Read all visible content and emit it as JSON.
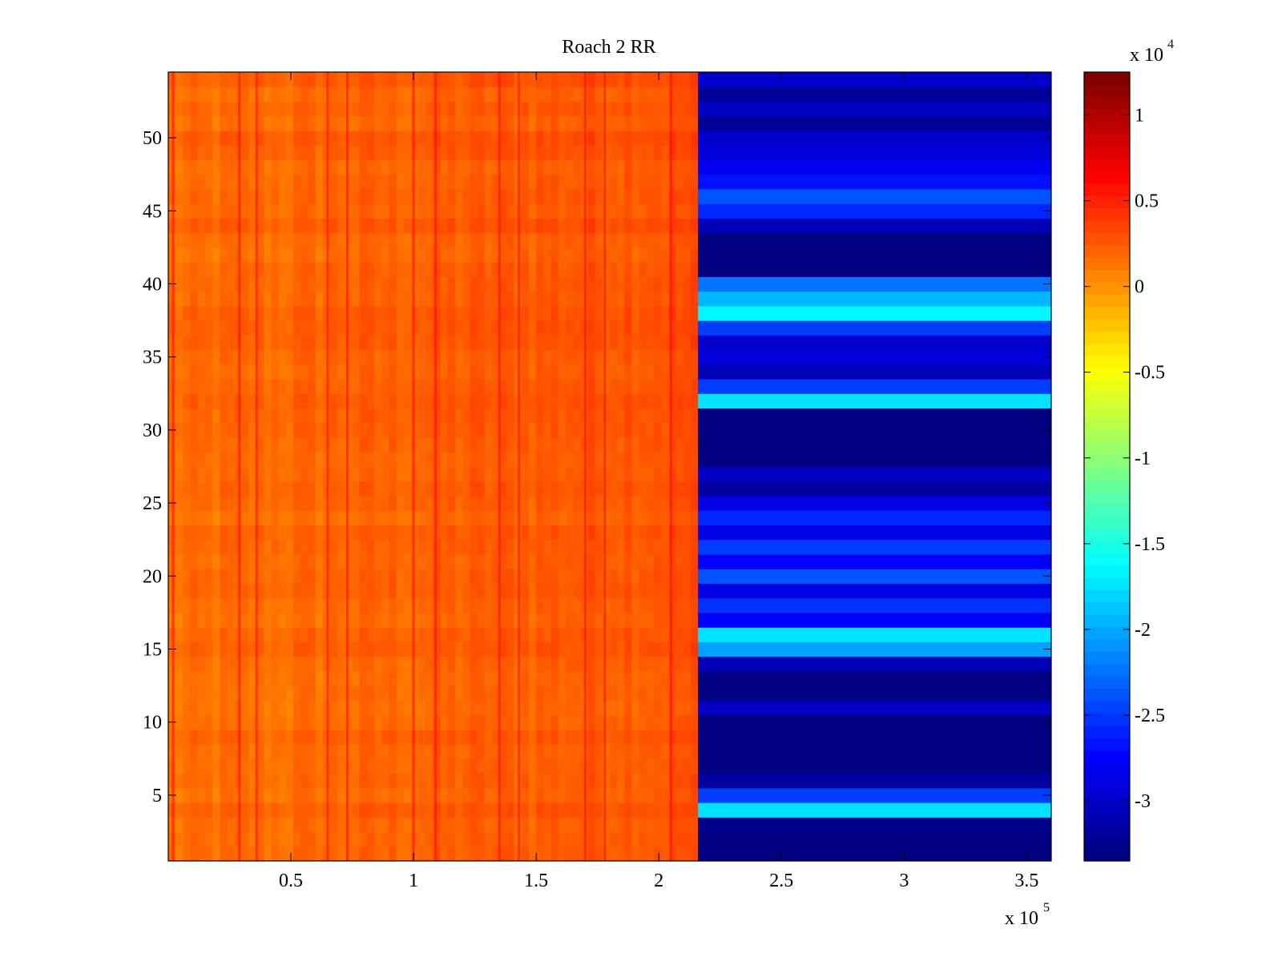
{
  "chart_data": {
    "type": "heatmap",
    "title": "Roach 2 RR",
    "xlabel": "",
    "ylabel": "",
    "xlim": [
      0,
      360000
    ],
    "ylim": [
      0.5,
      54.5
    ],
    "x_ticks": [
      50000,
      100000,
      150000,
      200000,
      250000,
      300000,
      350000
    ],
    "x_tick_labels": [
      "0.5",
      "1",
      "1.5",
      "2",
      "2.5",
      "3",
      "3.5"
    ],
    "x_multiplier": {
      "base": "x 10",
      "exponent": "5"
    },
    "y_ticks": [
      5,
      10,
      15,
      20,
      25,
      30,
      35,
      40,
      45,
      50
    ],
    "y_tick_labels": [
      "5",
      "10",
      "15",
      "20",
      "25",
      "30",
      "35",
      "40",
      "45",
      "50"
    ],
    "rows": 54,
    "transition_x": 216000,
    "left_region": {
      "x_range": [
        0,
        216000
      ],
      "approx_value": 1500,
      "note_values": "orange, roughly uniform with noise"
    },
    "right_region_row_values": [
      -33500,
      -33500,
      -33000,
      -17500,
      -25000,
      -32000,
      -33500,
      -33500,
      -33500,
      -33500,
      -30500,
      -33500,
      -33500,
      -31000,
      -20500,
      -17500,
      -28000,
      -25500,
      -29000,
      -24000,
      -28000,
      -25000,
      -29000,
      -26000,
      -29000,
      -32000,
      -30500,
      -33500,
      -33500,
      -33500,
      -33500,
      -17500,
      -25000,
      -31000,
      -29500,
      -30000,
      -25000,
      -16500,
      -19500,
      -22500,
      -33500,
      -33500,
      -33500,
      -31000,
      -26000,
      -24000,
      -27000,
      -28500,
      -29500,
      -30000,
      -32500,
      -30500,
      -32500,
      -30000
    ],
    "colorbar": {
      "colormap": "jet",
      "clim": [
        -33500,
        12500
      ],
      "ticks": [
        -30000,
        -25000,
        -20000,
        -15000,
        -10000,
        -5000,
        0,
        5000,
        10000
      ],
      "tick_labels": [
        "-3",
        "-2.5",
        "-2",
        "-1.5",
        "-1",
        "-0.5",
        "0",
        "0.5",
        "1"
      ],
      "multiplier": {
        "base": "x 10",
        "exponent": "4"
      }
    },
    "grid": false,
    "legend": "none"
  }
}
